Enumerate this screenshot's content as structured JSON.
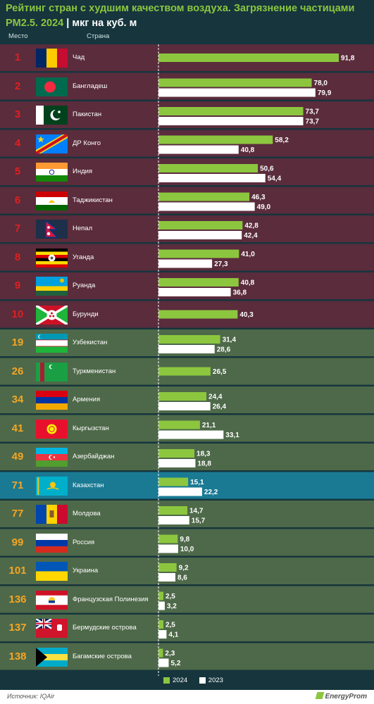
{
  "title_main": "Рейтинг стран с худшим качеством воздуха. Загрязнение частицами PM2.5. 2024",
  "title_unit": " | мкг на куб. м",
  "header": {
    "rank": "Место",
    "country": "Страна"
  },
  "legend": {
    "y2024": "2024",
    "y2023": "2023"
  },
  "source": "Источник: IQAir",
  "brand": "EnergyProm",
  "colors": {
    "bar_2024": "#8cc63f",
    "bar_2023": "#ffffff",
    "row_worst": "#5a2c3c",
    "row_region": "#4e6949",
    "row_highlight": "#1a7a94",
    "rank_worst": "#e02020",
    "rank_region": "#f5a623"
  },
  "chart_data": {
    "type": "bar",
    "orientation": "horizontal",
    "series": [
      {
        "name": "2024",
        "values": [
          91.8,
          78.0,
          73.7,
          58.2,
          50.6,
          46.3,
          42.8,
          41.0,
          40.8,
          40.3,
          31.4,
          26.5,
          24.4,
          21.1,
          18.3,
          15.1,
          14.7,
          9.8,
          9.2,
          2.5,
          2.5,
          2.3
        ]
      },
      {
        "name": "2023",
        "values": [
          null,
          79.9,
          73.7,
          40.8,
          54.4,
          49.0,
          42.4,
          27.3,
          36.8,
          null,
          28.6,
          null,
          26.4,
          33.1,
          18.8,
          22.2,
          15.7,
          10.0,
          8.6,
          3.2,
          4.1,
          5.2
        ]
      }
    ],
    "rows": [
      {
        "rank": "1",
        "country": "Чад",
        "flag": "chad",
        "group": "worst",
        "v2024": "91,8",
        "v2023": ""
      },
      {
        "rank": "2",
        "country": "Бангладеш",
        "flag": "bangladesh",
        "group": "worst",
        "v2024": "78,0",
        "v2023": "79,9"
      },
      {
        "rank": "3",
        "country": "Пакистан",
        "flag": "pakistan",
        "group": "worst",
        "v2024": "73,7",
        "v2023": "73,7"
      },
      {
        "rank": "4",
        "country": "ДР Конго",
        "flag": "drc",
        "group": "worst",
        "v2024": "58,2",
        "v2023": "40,8"
      },
      {
        "rank": "5",
        "country": "Индия",
        "flag": "india",
        "group": "worst",
        "v2024": "50,6",
        "v2023": "54,4"
      },
      {
        "rank": "6",
        "country": "Таджикистан",
        "flag": "tajikistan",
        "group": "worst",
        "v2024": "46,3",
        "v2023": "49,0"
      },
      {
        "rank": "7",
        "country": "Непал",
        "flag": "nepal",
        "group": "worst",
        "v2024": "42,8",
        "v2023": "42,4"
      },
      {
        "rank": "8",
        "country": "Уганда",
        "flag": "uganda",
        "group": "worst",
        "v2024": "41,0",
        "v2023": "27,3"
      },
      {
        "rank": "9",
        "country": "Руанда",
        "flag": "rwanda",
        "group": "worst",
        "v2024": "40,8",
        "v2023": "36,8"
      },
      {
        "rank": "10",
        "country": "Бурунди",
        "flag": "burundi",
        "group": "worst",
        "v2024": "40,3",
        "v2023": ""
      },
      {
        "rank": "19",
        "country": "Узбекистан",
        "flag": "uzbekistan",
        "group": "region",
        "v2024": "31,4",
        "v2023": "28,6"
      },
      {
        "rank": "26",
        "country": "Туркменистан",
        "flag": "turkmenistan",
        "group": "region",
        "v2024": "26,5",
        "v2023": ""
      },
      {
        "rank": "34",
        "country": "Армения",
        "flag": "armenia",
        "group": "region",
        "v2024": "24,4",
        "v2023": "26,4"
      },
      {
        "rank": "41",
        "country": "Кыргызстан",
        "flag": "kyrgyzstan",
        "group": "region",
        "v2024": "21,1",
        "v2023": "33,1"
      },
      {
        "rank": "49",
        "country": "Азербайджан",
        "flag": "azerbaijan",
        "group": "region",
        "v2024": "18,3",
        "v2023": "18,8"
      },
      {
        "rank": "71",
        "country": "Казахстан",
        "flag": "kazakhstan",
        "group": "highlight",
        "v2024": "15,1",
        "v2023": "22,2"
      },
      {
        "rank": "77",
        "country": "Молдова",
        "flag": "moldova",
        "group": "region",
        "v2024": "14,7",
        "v2023": "15,7"
      },
      {
        "rank": "99",
        "country": "Россия",
        "flag": "russia",
        "group": "region",
        "v2024": "9,8",
        "v2023": "10,0"
      },
      {
        "rank": "101",
        "country": "Украина",
        "flag": "ukraine",
        "group": "region",
        "v2024": "9,2",
        "v2023": "8,6"
      },
      {
        "rank": "136",
        "country": "Французская Полинезия",
        "flag": "french-polynesia",
        "group": "region",
        "v2024": "2,5",
        "v2023": "3,2"
      },
      {
        "rank": "137",
        "country": "Бермудские острова",
        "flag": "bermuda",
        "group": "region",
        "v2024": "2,5",
        "v2023": "4,1"
      },
      {
        "rank": "138",
        "country": "Багамские острова",
        "flag": "bahamas",
        "group": "region",
        "v2024": "2,3",
        "v2023": "5,2"
      }
    ]
  }
}
